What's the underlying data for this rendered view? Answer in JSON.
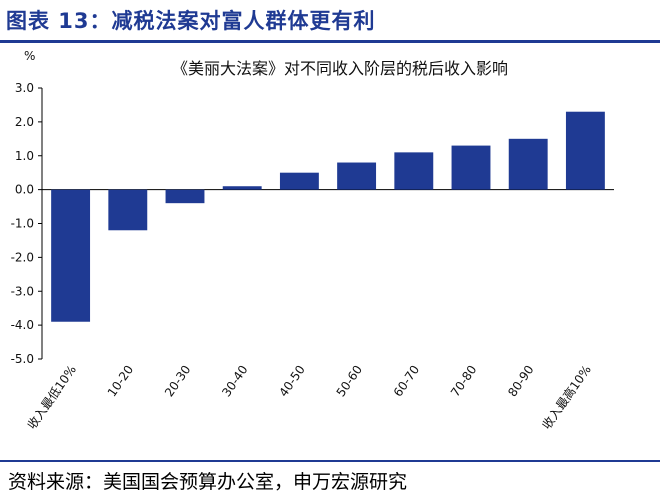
{
  "header": {
    "title": "图表 13：减税法案对富人群体更有利"
  },
  "footer": {
    "source": "资料来源：美国国会预算办公室，申万宏源研究"
  },
  "colors": {
    "bar": "#1f3a93",
    "accent": "#1f3a93"
  },
  "chart_data": {
    "type": "bar",
    "title": "《美丽大法案》对不同收入阶层的税后收入影响",
    "unit": "%",
    "categories": [
      "收入最低10%",
      "10-20",
      "20-30",
      "30-40",
      "40-50",
      "50-60",
      "60-70",
      "70-80",
      "80-90",
      "收入最高10%"
    ],
    "values": [
      -3.9,
      -1.2,
      -0.4,
      0.1,
      0.5,
      0.8,
      1.1,
      1.3,
      1.5,
      2.3
    ],
    "ylim": [
      -5.0,
      3.0
    ],
    "yticks": [
      "3.0",
      "2.0",
      "1.0",
      "0.0",
      "-1.0",
      "-2.0",
      "-3.0",
      "-4.0",
      "-5.0"
    ],
    "grid": false,
    "legend": "none"
  }
}
